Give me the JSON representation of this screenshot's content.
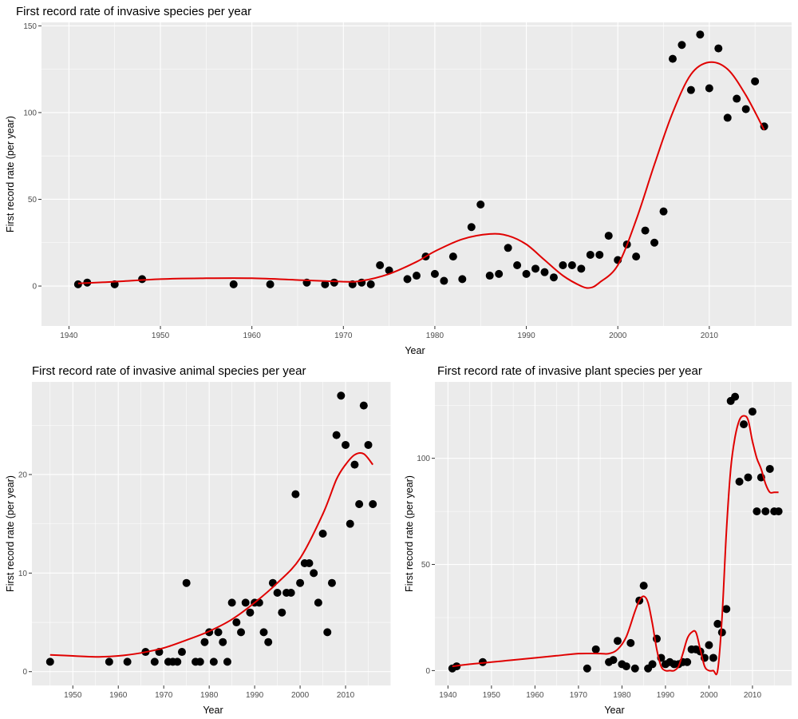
{
  "chart_data": [
    {
      "type": "scatter",
      "title": "First record rate of invasive species per year",
      "xlabel": "Year",
      "ylabel": "First record rate (per year)",
      "xlim": [
        1937,
        2019
      ],
      "ylim": [
        -23,
        152
      ],
      "xticks": [
        "1940",
        "1950",
        "1960",
        "1970",
        "1980",
        "1990",
        "2000",
        "2010"
      ],
      "yticks": [
        "0",
        "50",
        "100",
        "150"
      ],
      "grid": true,
      "point_color": "#000000",
      "line_color": "#e00000",
      "series": [
        {
          "kind": "points",
          "x": [
            1941,
            1942,
            1945,
            1948,
            1958,
            1962,
            1966,
            1968,
            1969,
            1971,
            1972,
            1973,
            1974,
            1975,
            1977,
            1978,
            1979,
            1980,
            1981,
            1982,
            1983,
            1984,
            1985,
            1986,
            1987,
            1988,
            1989,
            1990,
            1991,
            1992,
            1993,
            1994,
            1995,
            1996,
            1997,
            1998,
            1999,
            2000,
            2001,
            2002,
            2003,
            2004,
            2005,
            2006,
            2007,
            2008,
            2009,
            2010,
            2011,
            2012,
            2013,
            2014,
            2015,
            2016
          ],
          "y": [
            1,
            2,
            1,
            4,
            1,
            1,
            2,
            1,
            2,
            1,
            2,
            1,
            12,
            9,
            4,
            6,
            17,
            7,
            3,
            17,
            4,
            34,
            47,
            6,
            7,
            22,
            12,
            7,
            10,
            8,
            5,
            12,
            12,
            10,
            18,
            18,
            29,
            15,
            24,
            17,
            32,
            25,
            43,
            131,
            139,
            113,
            145,
            114,
            137,
            97,
            108,
            102,
            118,
            92
          ]
        },
        {
          "kind": "smooth",
          "x": [
            1941,
            1945,
            1950,
            1955,
            1960,
            1965,
            1970,
            1972,
            1975,
            1978,
            1980,
            1983,
            1986,
            1988,
            1990,
            1992,
            1994,
            1996,
            1997,
            1998,
            2000,
            2002,
            2004,
            2006,
            2008,
            2010,
            2012,
            2014,
            2016
          ],
          "y": [
            1.5,
            2.5,
            4,
            4.5,
            4.5,
            3.5,
            2.5,
            3,
            7,
            14,
            20,
            27,
            30,
            29,
            24,
            15,
            6,
            0,
            -1,
            2,
            12,
            38,
            70,
            100,
            122,
            129,
            125,
            110,
            90
          ]
        }
      ]
    },
    {
      "type": "scatter",
      "title": "First record rate of invasive animal species per year",
      "xlabel": "Year",
      "ylabel": "First record rate (per year)",
      "xlim": [
        1941,
        2020
      ],
      "ylim": [
        -1.4,
        29.4
      ],
      "xticks": [
        "1950",
        "1960",
        "1970",
        "1980",
        "1990",
        "2000",
        "2010"
      ],
      "yticks": [
        "0",
        "10",
        "20"
      ],
      "grid": true,
      "point_color": "#000000",
      "line_color": "#e00000",
      "series": [
        {
          "kind": "points",
          "x": [
            1945,
            1958,
            1962,
            1966,
            1968,
            1969,
            1971,
            1972,
            1973,
            1974,
            1975,
            1977,
            1978,
            1979,
            1980,
            1981,
            1982,
            1983,
            1984,
            1985,
            1986,
            1987,
            1988,
            1989,
            1990,
            1991,
            1992,
            1993,
            1994,
            1995,
            1996,
            1997,
            1998,
            1999,
            2000,
            2001,
            2002,
            2003,
            2004,
            2005,
            2006,
            2007,
            2008,
            2009,
            2010,
            2011,
            2012,
            2013,
            2014,
            2015,
            2016
          ],
          "y": [
            1,
            1,
            1,
            2,
            1,
            2,
            1,
            1,
            1,
            2,
            9,
            1,
            1,
            3,
            4,
            1,
            4,
            3,
            1,
            7,
            5,
            4,
            7,
            6,
            7,
            7,
            4,
            3,
            9,
            8,
            6,
            8,
            8,
            18,
            9,
            11,
            11,
            10,
            7,
            14,
            4,
            9,
            24,
            28,
            23,
            15,
            21,
            17,
            27,
            23,
            17
          ]
        },
        {
          "kind": "smooth",
          "x": [
            1945,
            1950,
            1955,
            1960,
            1965,
            1970,
            1975,
            1980,
            1985,
            1990,
            1995,
            2000,
            2005,
            2008,
            2010,
            2012,
            2014,
            2016
          ],
          "y": [
            1.7,
            1.6,
            1.5,
            1.6,
            1.9,
            2.4,
            3.2,
            4.1,
            5.3,
            7,
            9,
            11.5,
            16,
            19.5,
            21,
            22,
            22.1,
            21
          ]
        }
      ]
    },
    {
      "type": "scatter",
      "title": "First record rate of invasive plant species per year",
      "xlabel": "Year",
      "ylabel": "First record rate (per year)",
      "xlim": [
        1937,
        2019
      ],
      "ylim": [
        -7,
        136
      ],
      "xticks": [
        "1940",
        "1950",
        "1960",
        "1970",
        "1980",
        "1990",
        "2000",
        "2010"
      ],
      "yticks": [
        "0",
        "50",
        "100"
      ],
      "grid": true,
      "point_color": "#000000",
      "line_color": "#e00000",
      "series": [
        {
          "kind": "points",
          "x": [
            1941,
            1942,
            1948,
            1972,
            1974,
            1977,
            1978,
            1979,
            1980,
            1981,
            1982,
            1983,
            1984,
            1985,
            1986,
            1987,
            1988,
            1989,
            1990,
            1991,
            1992,
            1993,
            1994,
            1995,
            1996,
            1997,
            1998,
            1999,
            2000,
            2001,
            2002,
            2003,
            2004,
            2005,
            2006,
            2007,
            2008,
            2009,
            2010,
            2011,
            2012,
            2013,
            2014,
            2015,
            2016
          ],
          "y": [
            1,
            2,
            4,
            1,
            10,
            4,
            5,
            14,
            3,
            2,
            13,
            1,
            33,
            40,
            1,
            3,
            15,
            6,
            3,
            4,
            3,
            3,
            4,
            4,
            10,
            10,
            9,
            6,
            12,
            6,
            22,
            18,
            29,
            127,
            129,
            89,
            116,
            91,
            122,
            75,
            91,
            75,
            95,
            75,
            75
          ]
        },
        {
          "kind": "smooth",
          "x": [
            1941,
            1945,
            1950,
            1955,
            1960,
            1965,
            1970,
            1975,
            1977,
            1979,
            1981,
            1983,
            1984,
            1985,
            1986,
            1987,
            1988,
            1989,
            1990,
            1991,
            1992,
            1993,
            1994,
            1995,
            1996,
            1997,
            1998,
            1999,
            2000,
            2001,
            2002,
            2003,
            2004,
            2005,
            2006,
            2007,
            2008,
            2009,
            2010,
            2011,
            2012,
            2013,
            2014,
            2015,
            2016
          ],
          "y": [
            2,
            3,
            4,
            5,
            6,
            7,
            8,
            8,
            8,
            10,
            16,
            28,
            33,
            35,
            32,
            22,
            10,
            2,
            0,
            0,
            0,
            2,
            8,
            15,
            18,
            18,
            10,
            2,
            0,
            0,
            0,
            25,
            65,
            95,
            110,
            118,
            120,
            118,
            108,
            100,
            95,
            88,
            84,
            84,
            84
          ]
        }
      ]
    }
  ]
}
